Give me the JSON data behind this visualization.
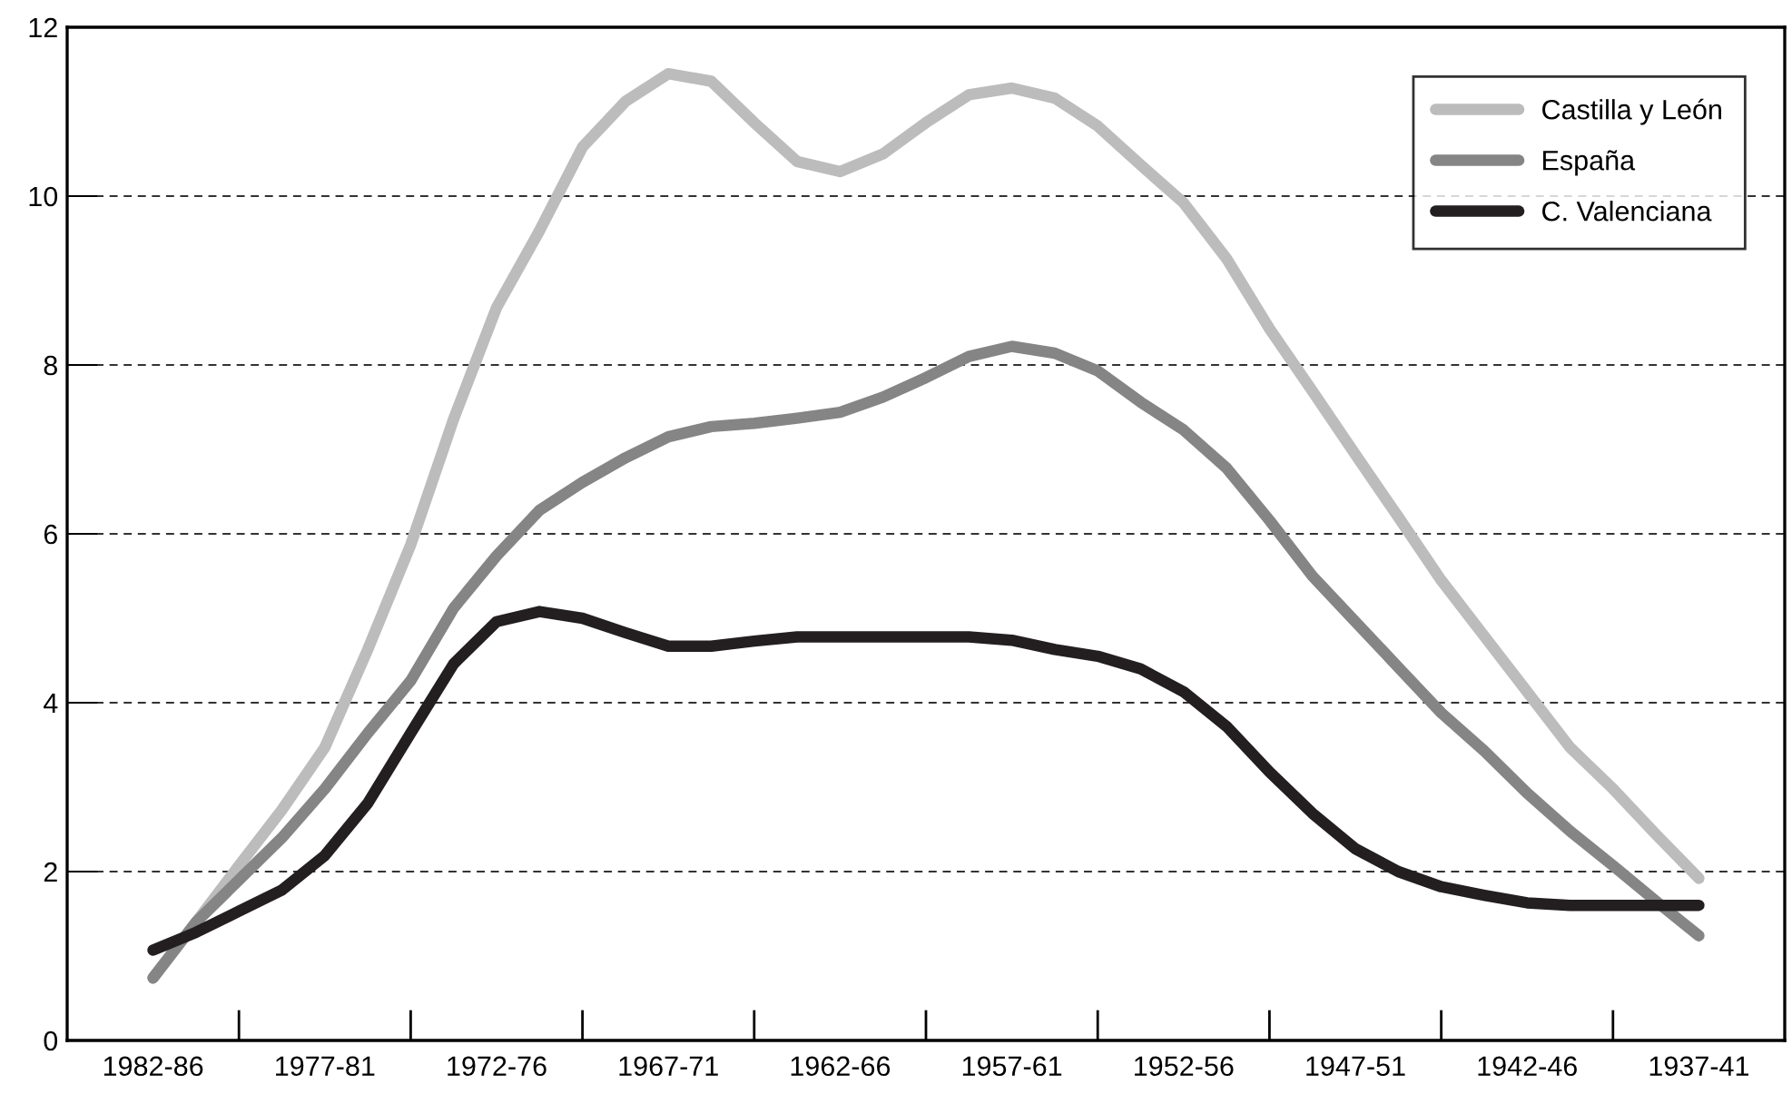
{
  "chart_data": {
    "type": "line",
    "categories": [
      "1982-86",
      null,
      null,
      null,
      "1977-81",
      null,
      null,
      null,
      "1972-76",
      null,
      null,
      null,
      "1967-71",
      null,
      null,
      null,
      "1962-66",
      null,
      null,
      null,
      "1957-61",
      null,
      null,
      null,
      "1952-56",
      null,
      null,
      null,
      "1947-51",
      null,
      null,
      null,
      "1942-46",
      null,
      null,
      null,
      "1937-41"
    ],
    "series": [
      {
        "name": "Castilla y León",
        "color": "#bcbcbc",
        "values": [
          0.74,
          1.4,
          2.07,
          2.73,
          3.47,
          4.63,
          5.87,
          7.36,
          8.68,
          9.59,
          10.58,
          11.12,
          11.45,
          11.36,
          10.87,
          10.41,
          10.29,
          10.5,
          10.87,
          11.2,
          11.28,
          11.16,
          10.83,
          10.37,
          9.92,
          9.26,
          8.43,
          7.69,
          6.94,
          6.2,
          5.45,
          4.79,
          4.13,
          3.47,
          2.98,
          2.44,
          1.92
        ]
      },
      {
        "name": "España",
        "color": "#858585",
        "values": [
          0.74,
          1.4,
          1.9,
          2.4,
          2.98,
          3.64,
          4.26,
          5.12,
          5.74,
          6.28,
          6.61,
          6.9,
          7.15,
          7.27,
          7.31,
          7.37,
          7.44,
          7.62,
          7.85,
          8.1,
          8.22,
          8.14,
          7.93,
          7.56,
          7.23,
          6.78,
          6.16,
          5.5,
          4.96,
          4.42,
          3.88,
          3.43,
          2.93,
          2.48,
          2.07,
          1.65,
          1.24
        ]
      },
      {
        "name": "C. Valenciana",
        "color": "#231f20",
        "values": [
          1.07,
          1.28,
          1.53,
          1.78,
          2.19,
          2.81,
          3.64,
          4.46,
          4.96,
          5.08,
          5.0,
          4.83,
          4.67,
          4.67,
          4.73,
          4.78,
          4.78,
          4.78,
          4.78,
          4.78,
          4.74,
          4.63,
          4.55,
          4.4,
          4.13,
          3.72,
          3.18,
          2.69,
          2.27,
          2.0,
          1.82,
          1.72,
          1.63,
          1.6,
          1.6,
          1.6,
          1.6
        ]
      }
    ],
    "ylim": [
      0,
      12
    ],
    "yticks": [
      0,
      2,
      4,
      6,
      8,
      10,
      12
    ],
    "grid": "y",
    "legend": "top right",
    "line_style": "solid",
    "marker": "none"
  }
}
